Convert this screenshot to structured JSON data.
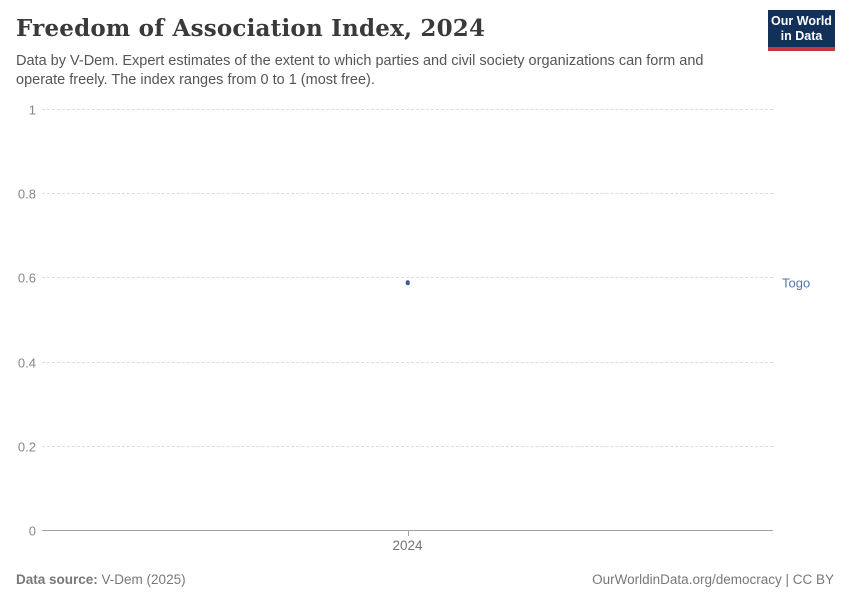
{
  "header": {
    "title": "Freedom of Association Index, 2024",
    "subtitle": "Data by V-Dem. Expert estimates of the extent to which parties and civil society organizations can form and operate freely. The index ranges from 0 to 1 (most free)."
  },
  "logo": {
    "line1": "Our World",
    "line2": "in Data"
  },
  "chart_data": {
    "type": "scatter",
    "title": "Freedom of Association Index, 2024",
    "x": [
      2024
    ],
    "series": [
      {
        "name": "Togo",
        "values": [
          0.59
        ]
      }
    ],
    "categories": [
      "2024"
    ],
    "xtick_labels": [
      "2024"
    ],
    "yticks": [
      0,
      0.2,
      0.4,
      0.6,
      0.8,
      1
    ],
    "ytick_labels": [
      "0",
      "0.2",
      "0.4",
      "0.6",
      "0.8",
      "1"
    ],
    "ylim": [
      0,
      1
    ],
    "xlabel": "",
    "ylabel": "",
    "grid": "horizontal-dashed",
    "legend_position": "entity-label-right"
  },
  "colors": {
    "point": "#3e5c8f",
    "entity_label": "#5276ab",
    "logo_bg": "#12305a",
    "logo_accent": "#c9353d"
  },
  "footer": {
    "source_label": "Data source:",
    "source_value": "V-Dem (2025)",
    "credit": "OurWorldinData.org/democracy | CC BY"
  }
}
